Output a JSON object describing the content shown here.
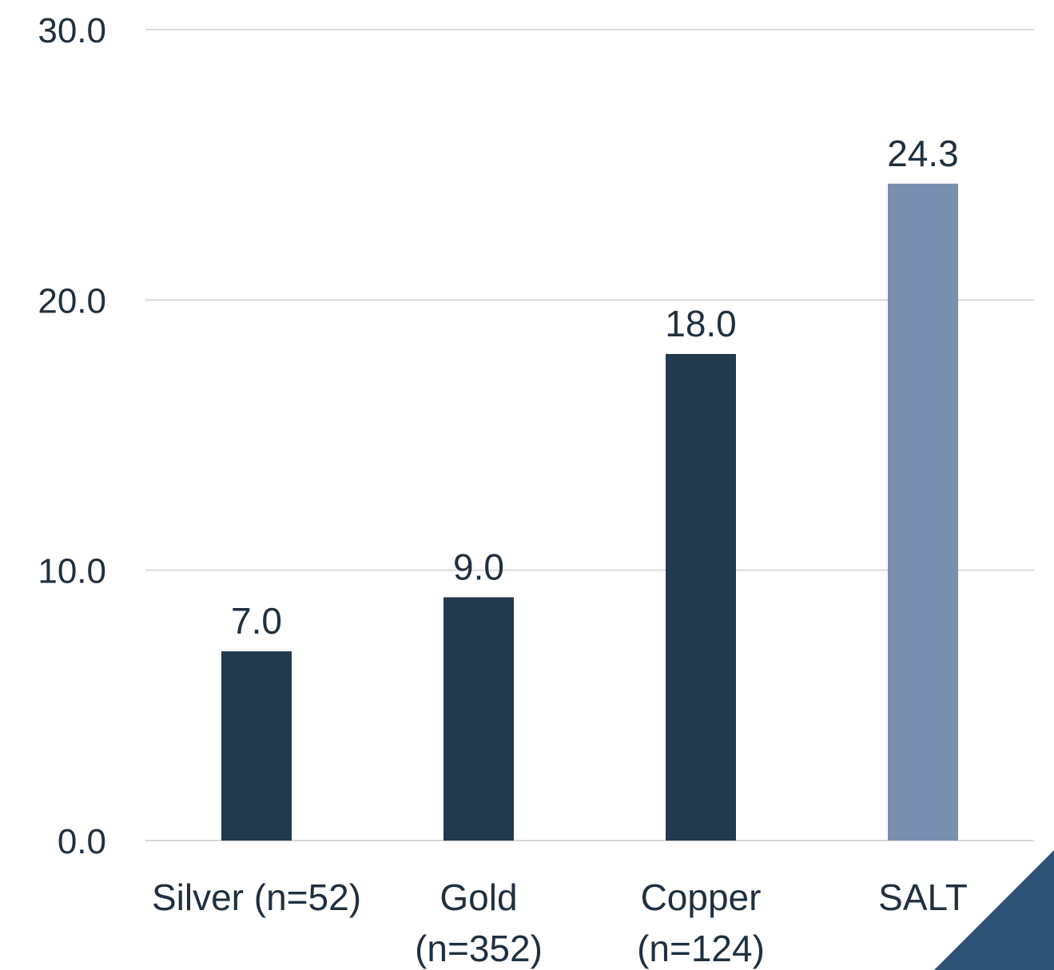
{
  "chart_data": {
    "type": "bar",
    "title": "",
    "xlabel": "",
    "ylabel": "",
    "categories": [
      [
        "Silver (n=52)"
      ],
      [
        "Gold",
        "(n=352)"
      ],
      [
        "Copper",
        "(n=124)"
      ],
      [
        "SALT"
      ]
    ],
    "values": [
      7.0,
      9.0,
      18.0,
      24.3
    ],
    "value_labels": [
      "7.0",
      "9.0",
      "18.0",
      "24.3"
    ],
    "bar_colors": [
      "#23394d",
      "#23394d",
      "#23394d",
      "#7a8fb0"
    ],
    "ylim": [
      0,
      30
    ],
    "yticks": [
      0,
      10,
      20,
      30
    ],
    "ytick_labels": [
      "0.0",
      "10.0",
      "20.0",
      "30.0"
    ],
    "grid": true,
    "legend": "none"
  },
  "colors": {
    "text": "#1f3040",
    "gridline": "#d9d9d9",
    "corner_accent": "#2c5275"
  }
}
